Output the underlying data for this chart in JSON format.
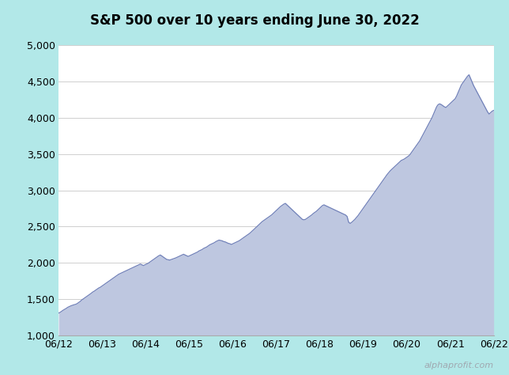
{
  "title": "S&P 500 over 10 years ending June 30, 2022",
  "background_color": "#b2e8e8",
  "plot_bg_color": "#ffffff",
  "fill_color": "#bec7e0",
  "line_color": "#7080b8",
  "ylim": [
    1000,
    5000
  ],
  "yticks": [
    1000,
    1500,
    2000,
    2500,
    3000,
    3500,
    4000,
    4500,
    5000
  ],
  "ytick_labels": [
    "1,000",
    "1,500",
    "2,000",
    "2,500",
    "3,000",
    "3,500",
    "4,000",
    "4,500",
    "5,000"
  ],
  "xtick_labels": [
    "06/12",
    "06/13",
    "06/14",
    "06/15",
    "06/16",
    "06/17",
    "06/18",
    "06/19",
    "06/20",
    "06/21",
    "06/22"
  ],
  "watermark": "alphaprofit.com",
  "sp500_data": [
    1310,
    1320,
    1335,
    1350,
    1362,
    1375,
    1390,
    1400,
    1410,
    1418,
    1425,
    1430,
    1440,
    1455,
    1470,
    1490,
    1505,
    1520,
    1535,
    1550,
    1565,
    1580,
    1598,
    1610,
    1625,
    1640,
    1655,
    1665,
    1680,
    1695,
    1710,
    1725,
    1740,
    1755,
    1770,
    1785,
    1800,
    1815,
    1830,
    1845,
    1855,
    1865,
    1875,
    1885,
    1895,
    1905,
    1915,
    1925,
    1935,
    1945,
    1955,
    1965,
    1975,
    1985,
    1975,
    1965,
    1975,
    1985,
    1995,
    2010,
    2025,
    2040,
    2055,
    2070,
    2085,
    2100,
    2110,
    2095,
    2080,
    2065,
    2050,
    2045,
    2040,
    2048,
    2055,
    2062,
    2070,
    2080,
    2090,
    2100,
    2110,
    2120,
    2110,
    2100,
    2090,
    2100,
    2110,
    2120,
    2130,
    2140,
    2150,
    2165,
    2175,
    2185,
    2200,
    2210,
    2220,
    2235,
    2250,
    2260,
    2270,
    2280,
    2295,
    2305,
    2315,
    2310,
    2305,
    2295,
    2290,
    2280,
    2270,
    2265,
    2255,
    2265,
    2275,
    2285,
    2295,
    2305,
    2320,
    2335,
    2350,
    2365,
    2380,
    2395,
    2410,
    2430,
    2450,
    2470,
    2490,
    2510,
    2530,
    2550,
    2570,
    2585,
    2600,
    2615,
    2630,
    2645,
    2660,
    2680,
    2700,
    2720,
    2740,
    2760,
    2780,
    2795,
    2810,
    2820,
    2800,
    2780,
    2760,
    2740,
    2720,
    2700,
    2680,
    2660,
    2640,
    2620,
    2600,
    2595,
    2600,
    2615,
    2630,
    2645,
    2660,
    2680,
    2695,
    2710,
    2730,
    2750,
    2770,
    2790,
    2800,
    2790,
    2780,
    2770,
    2760,
    2750,
    2740,
    2730,
    2720,
    2710,
    2700,
    2690,
    2680,
    2670,
    2660,
    2640,
    2560,
    2545,
    2560,
    2580,
    2600,
    2625,
    2650,
    2680,
    2710,
    2740,
    2770,
    2800,
    2830,
    2860,
    2890,
    2920,
    2950,
    2980,
    3010,
    3040,
    3070,
    3100,
    3130,
    3160,
    3190,
    3220,
    3245,
    3270,
    3290,
    3310,
    3330,
    3350,
    3370,
    3390,
    3410,
    3420,
    3430,
    3445,
    3460,
    3475,
    3500,
    3530,
    3560,
    3590,
    3620,
    3650,
    3680,
    3720,
    3760,
    3800,
    3840,
    3880,
    3920,
    3960,
    4000,
    4050,
    4100,
    4150,
    4180,
    4190,
    4180,
    4165,
    4150,
    4140,
    4160,
    4180,
    4200,
    4220,
    4240,
    4260,
    4300,
    4350,
    4400,
    4450,
    4480,
    4510,
    4540,
    4570,
    4590,
    4540,
    4490,
    4440,
    4400,
    4360,
    4320,
    4280,
    4240,
    4200,
    4160,
    4120,
    4080,
    4050,
    4070,
    4090,
    4100
  ]
}
